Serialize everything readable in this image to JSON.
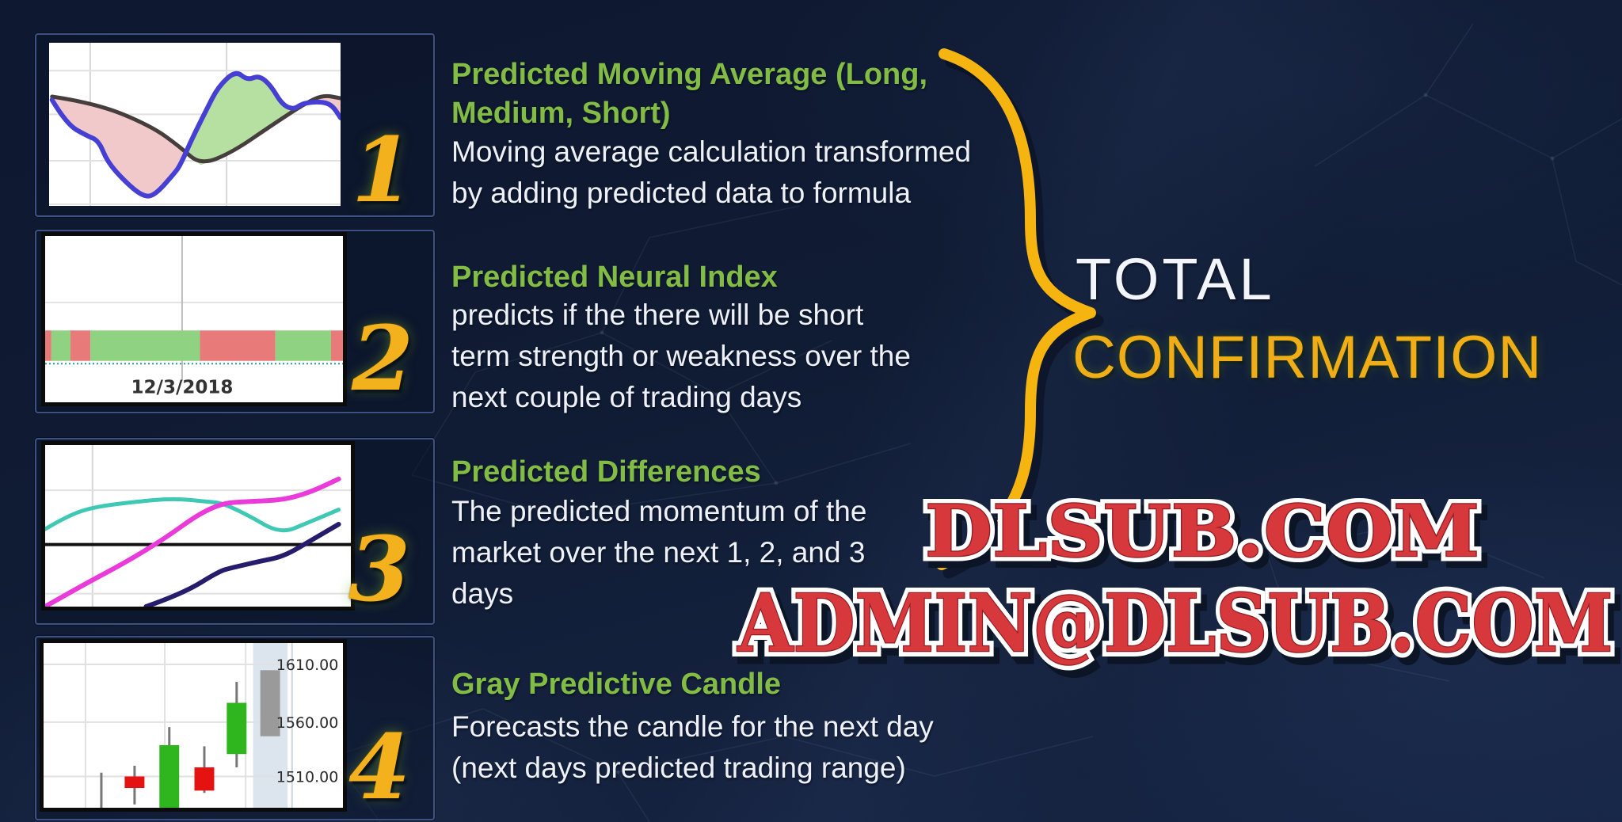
{
  "slide": {
    "background_navy": "#101b31",
    "accent_gold": "#f3b11d",
    "title_green": "#82bc45",
    "body_white": "#eef2f8",
    "watermark_red": "#d6383c"
  },
  "items": [
    {
      "number": "1",
      "title_lines": [
        "Predicted Moving Average (Long,",
        "Medium, Short)"
      ],
      "body_lines": [
        "Moving average calculation transformed",
        "by adding predicted data to formula"
      ]
    },
    {
      "number": "2",
      "title_lines": [
        "Predicted Neural Index"
      ],
      "body_lines": [
        "predicts if the there will be short",
        "term strength or weakness over the",
        "next couple of trading days"
      ]
    },
    {
      "number": "3",
      "title_lines": [
        "Predicted Differences"
      ],
      "body_lines": [
        "The predicted momentum of the",
        "market over the next 1, 2, and 3",
        "days"
      ]
    },
    {
      "number": "4",
      "title_lines": [
        "Gray Predictive Candle"
      ],
      "body_lines": [
        "Forecasts the candle for the next day",
        "(next days predicted trading range)"
      ]
    }
  ],
  "confirmation": {
    "line1": "TOTAL",
    "line2": "CONFIRMATION"
  },
  "watermarks": {
    "site": "DLSUB.COM",
    "email": "ADMIN@DLSUB.COM"
  },
  "chart_data": [
    {
      "id": "predicted-moving-average",
      "type": "line",
      "title": "Predicted moving average (blue) vs actual moving average (dark) with spread shading",
      "grid": {
        "v": [
          0.141,
          0.609
        ],
        "h": [
          0.171,
          0.439,
          0.723,
          0.99
        ]
      },
      "fills": {
        "predicted_above": "#b5e0a2",
        "predicted_below": "#f2c9cb"
      },
      "series": [
        {
          "name": "moving-average",
          "color": "#453e3c",
          "width": 5,
          "points": [
            [
              0.01,
              0.33
            ],
            [
              0.16,
              0.37
            ],
            [
              0.35,
              0.51
            ],
            [
              0.45,
              0.64
            ],
            [
              0.52,
              0.75
            ],
            [
              0.63,
              0.67
            ],
            [
              0.76,
              0.51
            ],
            [
              0.88,
              0.37
            ],
            [
              0.94,
              0.32
            ],
            [
              1,
              0.34
            ]
          ]
        },
        {
          "name": "predicted-moving-average",
          "color": "#463fd4",
          "width": 6,
          "points": [
            [
              0.01,
              0.35
            ],
            [
              0.06,
              0.5
            ],
            [
              0.13,
              0.57
            ],
            [
              0.17,
              0.6
            ],
            [
              0.2,
              0.73
            ],
            [
              0.26,
              0.85
            ],
            [
              0.32,
              0.94
            ],
            [
              0.36,
              0.94
            ],
            [
              0.43,
              0.8
            ],
            [
              0.45,
              0.75
            ],
            [
              0.49,
              0.59
            ],
            [
              0.54,
              0.41
            ],
            [
              0.58,
              0.27
            ],
            [
              0.64,
              0.17
            ],
            [
              0.68,
              0.23
            ],
            [
              0.72,
              0.2
            ],
            [
              0.76,
              0.26
            ],
            [
              0.8,
              0.38
            ],
            [
              0.84,
              0.41
            ],
            [
              0.87,
              0.37
            ],
            [
              0.93,
              0.36
            ],
            [
              0.97,
              0.38
            ],
            [
              1,
              0.46
            ]
          ]
        }
      ]
    },
    {
      "id": "predicted-neural-index",
      "type": "band",
      "date_label": "12/3/2018",
      "band_y": [
        0.568,
        0.751
      ],
      "dotted_line_y": 0.768,
      "dotted_line_color": "#2e9b9b",
      "grid": {
        "v": [
          0.46
        ],
        "h": [
          0.4
        ]
      },
      "colors": {
        "green": "#8fd281",
        "red": "#e87a7a"
      },
      "segments": [
        {
          "state": "red",
          "width": 0.021
        },
        {
          "state": "green",
          "width": 0.064
        },
        {
          "state": "red",
          "width": 0.067
        },
        {
          "state": "green",
          "width": 0.368
        },
        {
          "state": "red",
          "width": 0.253
        },
        {
          "state": "green",
          "width": 0.187
        },
        {
          "state": "red",
          "width": 0.04
        }
      ]
    },
    {
      "id": "predicted-differences",
      "type": "multiline",
      "zero_line": {
        "y": 0.616,
        "color": "#111111",
        "width": 4
      },
      "grid": {
        "v": [
          0.155
        ],
        "h": [
          0.28,
          0.92
        ]
      },
      "series": [
        {
          "name": "1-day-difference",
          "color": "#3fc8b4",
          "width": 5,
          "points": [
            [
              0,
              0.52
            ],
            [
              0.08,
              0.43
            ],
            [
              0.17,
              0.38
            ],
            [
              0.3,
              0.35
            ],
            [
              0.42,
              0.33
            ],
            [
              0.53,
              0.35
            ],
            [
              0.58,
              0.36
            ],
            [
              0.66,
              0.43
            ],
            [
              0.77,
              0.55
            ],
            [
              0.86,
              0.48
            ],
            [
              0.96,
              0.4
            ]
          ]
        },
        {
          "name": "2-day-difference",
          "color": "#ea3ad9",
          "width": 6,
          "points": [
            [
              0,
              1.0
            ],
            [
              0.12,
              0.87
            ],
            [
              0.26,
              0.73
            ],
            [
              0.39,
              0.58
            ],
            [
              0.5,
              0.43
            ],
            [
              0.58,
              0.36
            ],
            [
              0.66,
              0.35
            ],
            [
              0.78,
              0.34
            ],
            [
              0.87,
              0.29
            ],
            [
              0.96,
              0.21
            ]
          ]
        },
        {
          "name": "3-day-difference",
          "color": "#251d6b",
          "width": 6,
          "points": [
            [
              0.33,
              1.0
            ],
            [
              0.45,
              0.92
            ],
            [
              0.57,
              0.78
            ],
            [
              0.61,
              0.76
            ],
            [
              0.7,
              0.72
            ],
            [
              0.78,
              0.69
            ],
            [
              0.87,
              0.59
            ],
            [
              0.96,
              0.49
            ]
          ]
        }
      ]
    },
    {
      "id": "gray-predictive-candle",
      "type": "candlestick",
      "axis_labels": [
        {
          "text": "1610.00",
          "y": 0.13
        },
        {
          "text": "1560.00",
          "y": 0.48
        },
        {
          "text": "1510.00",
          "y": 0.81
        }
      ],
      "grid": {
        "v": [
          0.14,
          0.405,
          0.675
        ],
        "h": [
          0.13,
          0.48,
          0.81
        ]
      },
      "label_area_x": 0.83,
      "predict_band": {
        "x0": 0.7,
        "x1": 0.815,
        "color": "#dce4ee"
      },
      "colors": {
        "up": "#2fb51e",
        "down": "#e51212",
        "predicted": "#9a9a9a",
        "wick": "#777777"
      },
      "body_width": 0.066,
      "candles": [
        {
          "x": 0.193,
          "kind": "wick-only",
          "wick": [
            0.787,
            1.0
          ]
        },
        {
          "x": 0.304,
          "kind": "down",
          "body": [
            0.81,
            0.88
          ],
          "wick": [
            0.745,
            0.98
          ]
        },
        {
          "x": 0.42,
          "kind": "up",
          "body": [
            0.62,
            1.0
          ],
          "wick": [
            0.51,
            1.0
          ]
        },
        {
          "x": 0.537,
          "kind": "down",
          "body": [
            0.755,
            0.896
          ],
          "wick": [
            0.627,
            0.91
          ]
        },
        {
          "x": 0.645,
          "kind": "up",
          "body": [
            0.363,
            0.674
          ],
          "wick": [
            0.236,
            0.755
          ]
        },
        {
          "x": 0.757,
          "kind": "predicted",
          "body": [
            0.165,
            0.566
          ]
        }
      ]
    }
  ]
}
